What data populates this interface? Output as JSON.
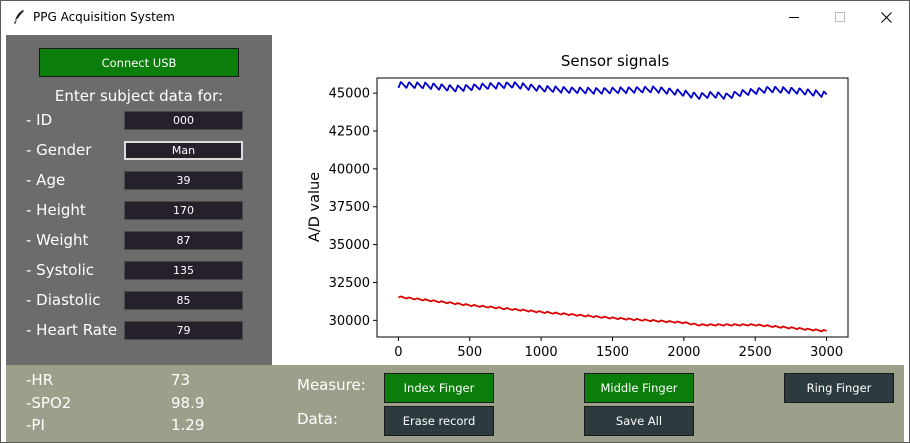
{
  "window": {
    "title": "PPG Acquisition System",
    "controls": [
      "minimize-icon",
      "maximize-icon",
      "close-icon"
    ]
  },
  "sidebar": {
    "connect_label": "Connect USB",
    "subject_title": "Enter subject data for:",
    "fields": [
      {
        "label": "- ID",
        "value": "000"
      },
      {
        "label": "- Gender",
        "value": "Man"
      },
      {
        "label": "- Age",
        "value": "39"
      },
      {
        "label": "- Height",
        "value": "170"
      },
      {
        "label": "- Weight",
        "value": "87"
      },
      {
        "label": "- Systolic",
        "value": "135"
      },
      {
        "label": "- Diastolic",
        "value": "85"
      },
      {
        "label": "- Heart Rate",
        "value": "79"
      }
    ]
  },
  "vitals": [
    {
      "label": "-HR",
      "value": "73"
    },
    {
      "label": "-SPO2",
      "value": "98.9"
    },
    {
      "label": "-PI",
      "value": "1.29"
    }
  ],
  "controls": {
    "measure_label": "Measure:",
    "data_label": "Data:",
    "index_finger": "Index Finger",
    "middle_finger": "Middle Finger",
    "ring_finger": "Ring Finger",
    "erase_record": "Erase record",
    "save_all": "Save All"
  },
  "colors": {
    "panel": "#6c6c6c",
    "bottom_panel": "#9c9f8a",
    "green_button": "#0a7d0a",
    "dark_button": "#2c3b3e",
    "input_bg": "#261f2c",
    "series_blue": "#0000cc",
    "series_red": "#dd0000"
  },
  "chart_data": {
    "type": "line",
    "title": "Sensor signals",
    "xlabel": "",
    "ylabel": "A/D value",
    "xlim": [
      -150,
      3150
    ],
    "ylim": [
      28900,
      46000
    ],
    "xticks": [
      0,
      500,
      1000,
      1500,
      2000,
      2500,
      3000
    ],
    "yticks": [
      30000,
      32500,
      35000,
      37500,
      40000,
      42500,
      45000
    ],
    "grid": false,
    "series": [
      {
        "color": "#0000cc",
        "baseline": {
          "x": [
            0,
            200,
            400,
            600,
            800,
            1000,
            1200,
            1400,
            1600,
            1800,
            2000,
            2100,
            2200,
            2300,
            2400,
            2600,
            2800,
            3000
          ],
          "y": [
            45550,
            45500,
            45300,
            45450,
            45550,
            45300,
            45200,
            45150,
            45200,
            45250,
            45000,
            44800,
            44900,
            44800,
            45000,
            45250,
            45150,
            44900
          ]
        },
        "amplitude": 400,
        "period": 57
      },
      {
        "color": "#dd0000",
        "baseline": {
          "x": [
            0,
            500,
            1000,
            1500,
            2000,
            2100,
            2500,
            3000
          ],
          "y": [
            31550,
            31000,
            30550,
            30150,
            29850,
            29700,
            29700,
            29300
          ]
        },
        "amplitude": 100,
        "period": 57
      }
    ]
  }
}
